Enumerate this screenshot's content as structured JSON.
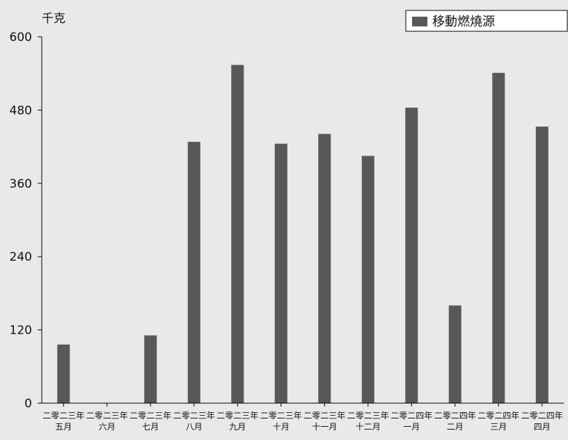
{
  "chart_data": {
    "type": "bar",
    "ylabel": "千克",
    "xlabel": "",
    "ylim": [
      0,
      600
    ],
    "yticks": [
      0,
      120,
      240,
      360,
      480,
      600
    ],
    "grid": false,
    "legend": {
      "placement": "top-right"
    },
    "categories": [
      [
        "二零二三年",
        "五月"
      ],
      [
        "二零二三年",
        "六月"
      ],
      [
        "二零二三年",
        "七月"
      ],
      [
        "二零二三年",
        "八月"
      ],
      [
        "二零二三年",
        "九月"
      ],
      [
        "二零二三年",
        "十月"
      ],
      [
        "二零二三年",
        "十一月"
      ],
      [
        "二零二三年",
        "十二月"
      ],
      [
        "二零二四年",
        "一月"
      ],
      [
        "二零二四年",
        "二月"
      ],
      [
        "二零二四年",
        "三月"
      ],
      [
        "二零二四年",
        "四月"
      ]
    ],
    "series": [
      {
        "name": "移動燃燒源",
        "color": "#58585a",
        "values": [
          96,
          0,
          111,
          428,
          554,
          425,
          441,
          405,
          484,
          160,
          541,
          453
        ]
      }
    ]
  }
}
